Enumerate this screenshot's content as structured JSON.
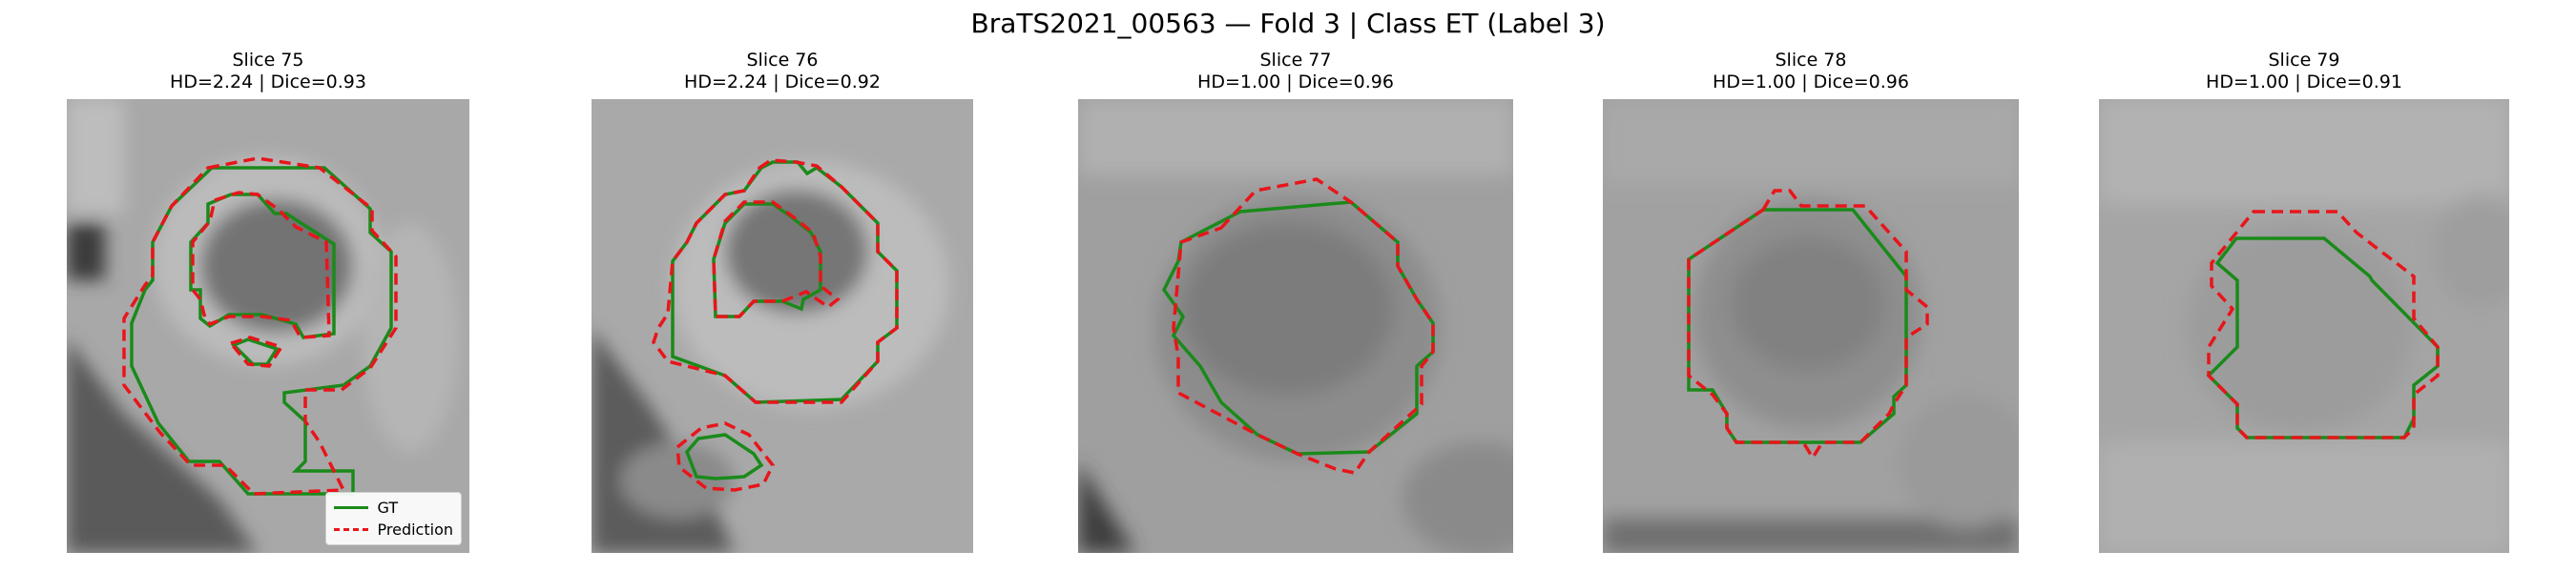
{
  "title": "BraTS2021_00563 — Fold 3 | Class ET (Label 3)",
  "panels": [
    {
      "slice": "Slice 75",
      "metrics": "HD=2.24 | Dice=0.93"
    },
    {
      "slice": "Slice 76",
      "metrics": "HD=2.24 | Dice=0.92"
    },
    {
      "slice": "Slice 77",
      "metrics": "HD=1.00 | Dice=0.96"
    },
    {
      "slice": "Slice 78",
      "metrics": "HD=1.00 | Dice=0.96"
    },
    {
      "slice": "Slice 79",
      "metrics": "HD=1.00 | Dice=0.91"
    }
  ],
  "legend": {
    "gt": "GT",
    "prediction": "Prediction"
  },
  "colors": {
    "gt": "#1a8a1a",
    "prediction": "#e8151b"
  }
}
